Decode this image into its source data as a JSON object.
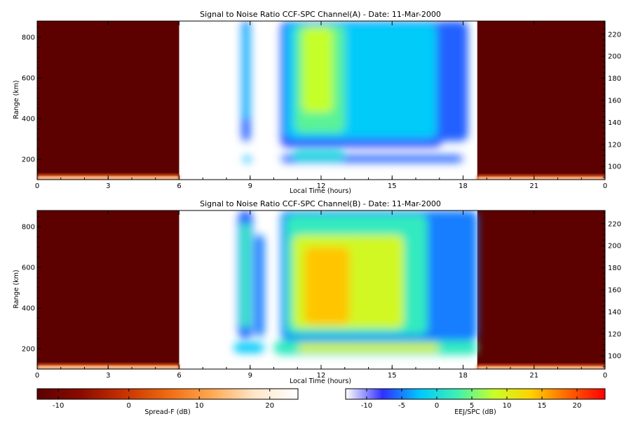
{
  "chart_data": [
    {
      "type": "heatmap",
      "title": "Signal to Noise Ratio CCF-SPC Channel(A) - Date: 11-Mar-2000",
      "xlabel": "Local Time (hours)",
      "ylabel": "Range (km)",
      "x_ticks": [
        "0",
        "3",
        "6",
        "9",
        "12",
        "15",
        "18",
        "21",
        "0"
      ],
      "y_ticks": [
        "200",
        "400",
        "600",
        "800"
      ],
      "y2_ticks": [
        "100",
        "120",
        "140",
        "160",
        "180",
        "200",
        "220"
      ],
      "xlim": [
        0,
        24
      ],
      "ylim": [
        100,
        880
      ],
      "y2lim": [
        88,
        232
      ],
      "night_intervals": [
        [
          0,
          6
        ],
        [
          18.6,
          24
        ]
      ],
      "spread_f_streaks": [
        {
          "x0": 0,
          "x1": 6,
          "y": 115
        },
        {
          "x0": 18.6,
          "x1": 24,
          "y": 112
        }
      ],
      "echo_regions": [
        {
          "x0": 8.65,
          "x1": 9.0,
          "y0": 290,
          "y1": 880,
          "level": -6
        },
        {
          "x0": 8.73,
          "x1": 8.93,
          "y0": 400,
          "y1": 860,
          "level": -2
        },
        {
          "x0": 8.7,
          "x1": 9.05,
          "y0": 185,
          "y1": 215,
          "level": -3
        },
        {
          "x0": 10.3,
          "x1": 17.1,
          "y0": 260,
          "y1": 880,
          "level": -7
        },
        {
          "x0": 10.5,
          "x1": 16.9,
          "y0": 300,
          "y1": 870,
          "level": -2
        },
        {
          "x0": 10.9,
          "x1": 13.0,
          "y0": 330,
          "y1": 860,
          "level": 4
        },
        {
          "x0": 11.2,
          "x1": 12.5,
          "y0": 430,
          "y1": 850,
          "level": 8
        },
        {
          "x0": 16.9,
          "x1": 18.2,
          "y0": 290,
          "y1": 880,
          "level": -6
        },
        {
          "x0": 10.3,
          "x1": 18.0,
          "y0": 185,
          "y1": 220,
          "level": -6
        },
        {
          "x0": 10.8,
          "x1": 13.0,
          "y0": 195,
          "y1": 245,
          "level": 0
        }
      ]
    },
    {
      "type": "heatmap",
      "title": "Signal to Noise Ratio CCF-SPC Channel(B) - Date: 11-Mar-2000",
      "xlabel": "Local Time (hours)",
      "ylabel": "Range (km)",
      "x_ticks": [
        "0",
        "3",
        "6",
        "9",
        "12",
        "15",
        "18",
        "21",
        "0"
      ],
      "y_ticks": [
        "200",
        "400",
        "600",
        "800"
      ],
      "y2_ticks": [
        "100",
        "120",
        "140",
        "160",
        "180",
        "200",
        "220"
      ],
      "xlim": [
        0,
        24
      ],
      "ylim": [
        100,
        880
      ],
      "y2lim": [
        88,
        232
      ],
      "night_intervals": [
        [
          0,
          6
        ],
        [
          18.6,
          24
        ]
      ],
      "spread_f_streaks": [
        {
          "x0": 0,
          "x1": 6,
          "y": 115
        },
        {
          "x0": 18.6,
          "x1": 24,
          "y": 112
        }
      ],
      "echo_regions": [
        {
          "x0": 8.5,
          "x1": 9.1,
          "y0": 250,
          "y1": 880,
          "level": -6
        },
        {
          "x0": 8.6,
          "x1": 9.0,
          "y0": 300,
          "y1": 820,
          "level": 2
        },
        {
          "x0": 9.2,
          "x1": 9.6,
          "y0": 260,
          "y1": 760,
          "level": -5
        },
        {
          "x0": 10.3,
          "x1": 18.6,
          "y0": 240,
          "y1": 880,
          "level": -5
        },
        {
          "x0": 10.5,
          "x1": 16.5,
          "y0": 270,
          "y1": 860,
          "level": 2
        },
        {
          "x0": 10.8,
          "x1": 15.5,
          "y0": 300,
          "y1": 760,
          "level": 9
        },
        {
          "x0": 11.3,
          "x1": 13.2,
          "y0": 320,
          "y1": 700,
          "level": 14
        },
        {
          "x0": 8.3,
          "x1": 9.6,
          "y0": 180,
          "y1": 230,
          "level": -2
        },
        {
          "x0": 10.0,
          "x1": 18.6,
          "y0": 170,
          "y1": 240,
          "level": 2
        },
        {
          "x0": 11.0,
          "x1": 17.0,
          "y0": 185,
          "y1": 225,
          "level": 10
        }
      ]
    }
  ],
  "colorbars": {
    "spread_f": {
      "label": "Spread-F (dB)",
      "range": [
        -13,
        24
      ],
      "ticks": [
        "-10",
        "0",
        "10",
        "20"
      ],
      "tick_values": [
        -10,
        0,
        10,
        20
      ],
      "colors": [
        "#5c0000",
        "#8b0a00",
        "#c83200",
        "#f06a10",
        "#ffa850",
        "#ffe6c8",
        "#ffffff"
      ]
    },
    "eej_spc": {
      "label": "EEJ/SPC (dB)",
      "range": [
        -13,
        24
      ],
      "ticks": [
        "-10",
        "-5",
        "0",
        "5",
        "10",
        "15",
        "20"
      ],
      "tick_values": [
        -10,
        -5,
        0,
        5,
        10,
        15,
        20
      ],
      "colors": [
        "#ffffff",
        "#3030ff",
        "#00c8ff",
        "#3cf0b4",
        "#c8ff28",
        "#ffd200",
        "#ff6400",
        "#ff0000"
      ]
    }
  },
  "colors": {
    "night_background": "#5c0000",
    "day_background": "#ffffff"
  }
}
